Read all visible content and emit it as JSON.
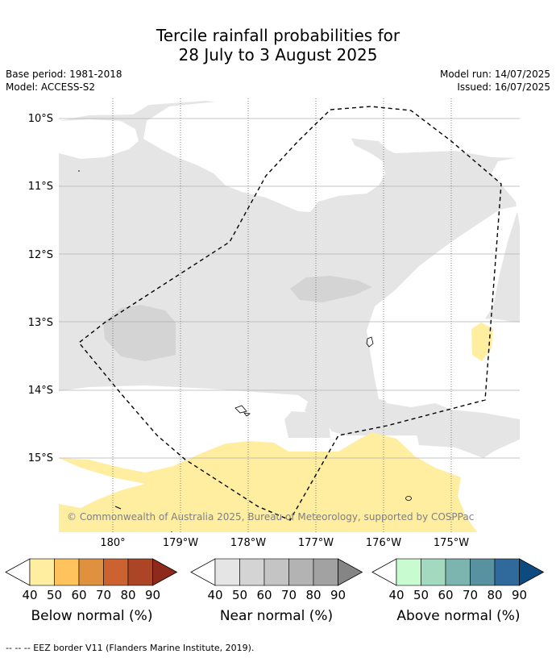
{
  "header": {
    "title_line1": "Tercile rainfall probabilities for",
    "title_line2": "28 July to 3 August 2025",
    "base_period": "Base period: 1981-2018",
    "model": "Model: ACCESS-S2",
    "model_run": "Model run: 14/07/2025",
    "issued": "Issued: 16/07/2025"
  },
  "map": {
    "lat_labels": [
      "10°S",
      "11°S",
      "12°S",
      "13°S",
      "14°S",
      "15°S"
    ],
    "lon_labels": [
      "180°",
      "179°W",
      "178°W",
      "177°W",
      "176°W",
      "175°W"
    ],
    "copyright": "© Commonwealth of Australia 2025, Bureau of Meteorology, supported by COSPPac",
    "colors": {
      "near_normal_40": "#e5e5e5",
      "near_normal_50": "#d4d4d4",
      "below_normal_40": "#ffeda0",
      "ocean": "#ffffff",
      "eez_line": "#000000"
    }
  },
  "colorbars": [
    {
      "id": "below",
      "label": "Below normal (%)",
      "ticks": [
        "40",
        "50",
        "60",
        "70",
        "80",
        "90"
      ],
      "colors": [
        "#ffeda0",
        "#fec35c",
        "#e0913f",
        "#cc6230",
        "#ac4426",
        "#8e2a1c"
      ]
    },
    {
      "id": "near",
      "label": "Near normal (%)",
      "ticks": [
        "40",
        "50",
        "60",
        "70",
        "80",
        "90"
      ],
      "colors": [
        "#e5e5e5",
        "#d4d4d4",
        "#c4c4c4",
        "#b3b3b3",
        "#a2a2a2",
        "#858585"
      ]
    },
    {
      "id": "above",
      "label": "Above normal (%)",
      "ticks": [
        "40",
        "50",
        "60",
        "70",
        "80",
        "90"
      ],
      "colors": [
        "#c8fcd0",
        "#a2d9bf",
        "#7cb4b0",
        "#5892a0",
        "#306a9c",
        "#0c4a80"
      ]
    }
  ],
  "footnote": "--  --  -- EEZ border V11 (Flanders Marine Institute, 2019)."
}
